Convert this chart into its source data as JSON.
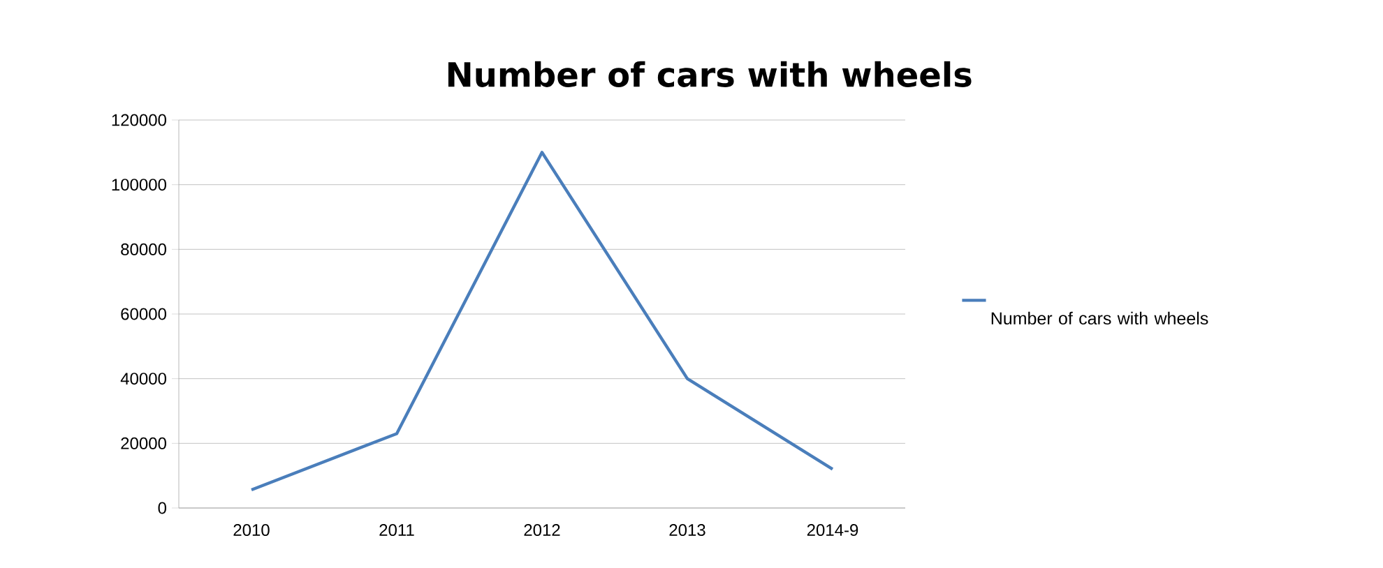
{
  "chart_data": {
    "type": "line",
    "title": "Number of cars with wheels",
    "categories": [
      "2010",
      "2011",
      "2012",
      "2013",
      "2014-9"
    ],
    "series": [
      {
        "name": "Number of cars with wheels",
        "color": "#4a7ebb",
        "values": [
          5600,
          23000,
          110000,
          40000,
          12000
        ]
      }
    ],
    "ylim": [
      0,
      120000
    ],
    "yticks": [
      0,
      20000,
      40000,
      60000,
      80000,
      100000,
      120000
    ],
    "grid": "y",
    "legend": "right",
    "marker": "none",
    "line_style": "solid"
  }
}
